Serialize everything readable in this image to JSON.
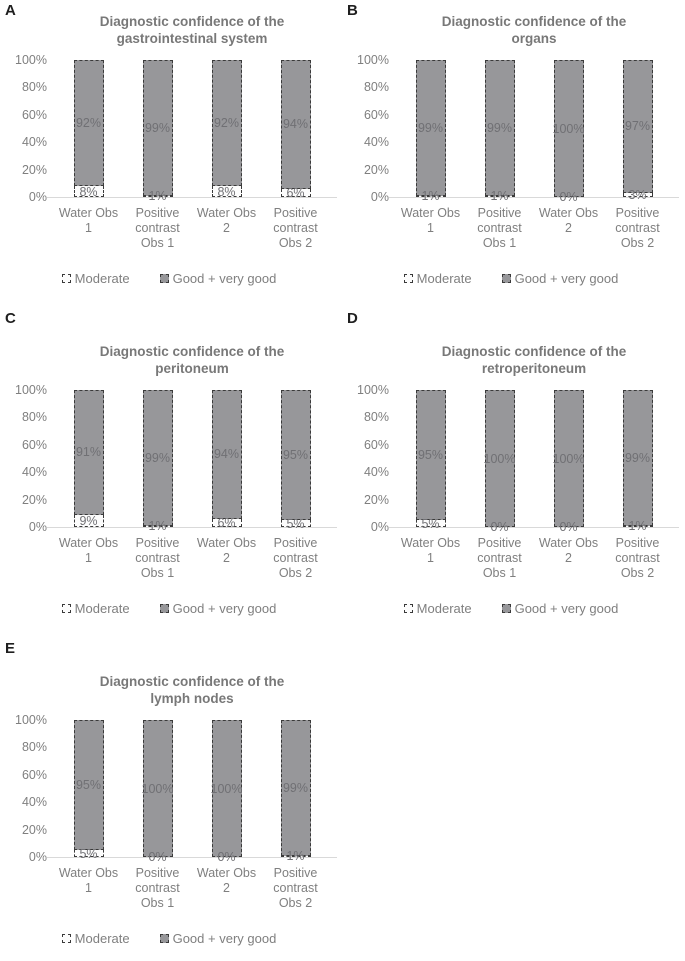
{
  "figure": {
    "y_ticks": [
      "100%",
      "80%",
      "60%",
      "40%",
      "20%",
      "0%"
    ],
    "category_lines": [
      [
        "Water Obs",
        "1"
      ],
      [
        "Positive",
        "contrast",
        "Obs 1"
      ],
      [
        "Water Obs",
        "2"
      ],
      [
        "Positive",
        "contrast",
        "Obs 2"
      ]
    ],
    "legend": [
      {
        "key": "moderate",
        "label": "Moderate"
      },
      {
        "key": "good",
        "label": "Good + very good"
      }
    ],
    "colors": {
      "bar_fill": "#97979a",
      "moderate_fill": "#fcfcfc",
      "bar_border": "#3a3a3a",
      "text_gray": "#7f7f7f",
      "data_label": "#707074",
      "axis_line": "#d9d9d9",
      "panel_letter": "#1f1f1f"
    },
    "panels": [
      {
        "letter": "A",
        "title_lines": [
          "Diagnostic confidence of the",
          "gastrointestinal system"
        ],
        "moderate": [
          8,
          1,
          8,
          6
        ],
        "good": [
          92,
          99,
          92,
          94
        ]
      },
      {
        "letter": "B",
        "title_lines": [
          "Diagnostic confidence of the",
          "organs"
        ],
        "moderate": [
          1,
          1,
          0,
          3
        ],
        "good": [
          99,
          99,
          100,
          97
        ]
      },
      {
        "letter": "C",
        "title_lines": [
          "Diagnostic confidence of the",
          "peritoneum"
        ],
        "moderate": [
          9,
          1,
          6,
          5
        ],
        "good": [
          91,
          99,
          94,
          95
        ]
      },
      {
        "letter": "D",
        "title_lines": [
          "Diagnostic confidence of the",
          "retroperitoneum"
        ],
        "moderate": [
          5,
          0,
          0,
          1
        ],
        "good": [
          95,
          100,
          100,
          99
        ]
      },
      {
        "letter": "E",
        "title_lines": [
          "Diagnostic confidence of the",
          "lymph nodes"
        ],
        "moderate": [
          5,
          0,
          0,
          1
        ],
        "good": [
          95,
          100,
          100,
          99
        ]
      }
    ]
  },
  "chart_data": [
    {
      "type": "bar",
      "stacked": true,
      "panel": "A",
      "title": "Diagnostic confidence of the gastrointestinal system",
      "categories": [
        "Water Obs 1",
        "Positive contrast Obs 1",
        "Water Obs 2",
        "Positive contrast Obs 2"
      ],
      "series": [
        {
          "name": "Moderate",
          "values": [
            8,
            1,
            8,
            6
          ]
        },
        {
          "name": "Good + very good",
          "values": [
            92,
            99,
            92,
            94
          ]
        }
      ],
      "xlabel": "",
      "ylabel": "",
      "ylim": [
        0,
        100
      ],
      "y_tick_format": "percent",
      "grid": false,
      "legend_position": "bottom"
    },
    {
      "type": "bar",
      "stacked": true,
      "panel": "B",
      "title": "Diagnostic confidence of the organs",
      "categories": [
        "Water Obs 1",
        "Positive contrast Obs 1",
        "Water Obs 2",
        "Positive contrast Obs 2"
      ],
      "series": [
        {
          "name": "Moderate",
          "values": [
            1,
            1,
            0,
            3
          ]
        },
        {
          "name": "Good + very good",
          "values": [
            99,
            99,
            100,
            97
          ]
        }
      ],
      "xlabel": "",
      "ylabel": "",
      "ylim": [
        0,
        100
      ],
      "y_tick_format": "percent",
      "grid": false,
      "legend_position": "bottom"
    },
    {
      "type": "bar",
      "stacked": true,
      "panel": "C",
      "title": "Diagnostic confidence of the peritoneum",
      "categories": [
        "Water Obs 1",
        "Positive contrast Obs 1",
        "Water Obs 2",
        "Positive contrast Obs 2"
      ],
      "series": [
        {
          "name": "Moderate",
          "values": [
            9,
            1,
            6,
            5
          ]
        },
        {
          "name": "Good + very good",
          "values": [
            91,
            99,
            94,
            95
          ]
        }
      ],
      "xlabel": "",
      "ylabel": "",
      "ylim": [
        0,
        100
      ],
      "y_tick_format": "percent",
      "grid": false,
      "legend_position": "bottom"
    },
    {
      "type": "bar",
      "stacked": true,
      "panel": "D",
      "title": "Diagnostic confidence of the retroperitoneum",
      "categories": [
        "Water Obs 1",
        "Positive contrast Obs 1",
        "Water Obs 2",
        "Positive contrast Obs 2"
      ],
      "series": [
        {
          "name": "Moderate",
          "values": [
            5,
            0,
            0,
            1
          ]
        },
        {
          "name": "Good + very good",
          "values": [
            95,
            100,
            100,
            99
          ]
        }
      ],
      "xlabel": "",
      "ylabel": "",
      "ylim": [
        0,
        100
      ],
      "y_tick_format": "percent",
      "grid": false,
      "legend_position": "bottom"
    },
    {
      "type": "bar",
      "stacked": true,
      "panel": "E",
      "title": "Diagnostic confidence of the lymph nodes",
      "categories": [
        "Water Obs 1",
        "Positive contrast Obs 1",
        "Water Obs 2",
        "Positive contrast Obs 2"
      ],
      "series": [
        {
          "name": "Moderate",
          "values": [
            5,
            0,
            0,
            1
          ]
        },
        {
          "name": "Good + very good",
          "values": [
            95,
            100,
            100,
            99
          ]
        }
      ],
      "xlabel": "",
      "ylabel": "",
      "ylim": [
        0,
        100
      ],
      "y_tick_format": "percent",
      "grid": false,
      "legend_position": "bottom"
    }
  ]
}
